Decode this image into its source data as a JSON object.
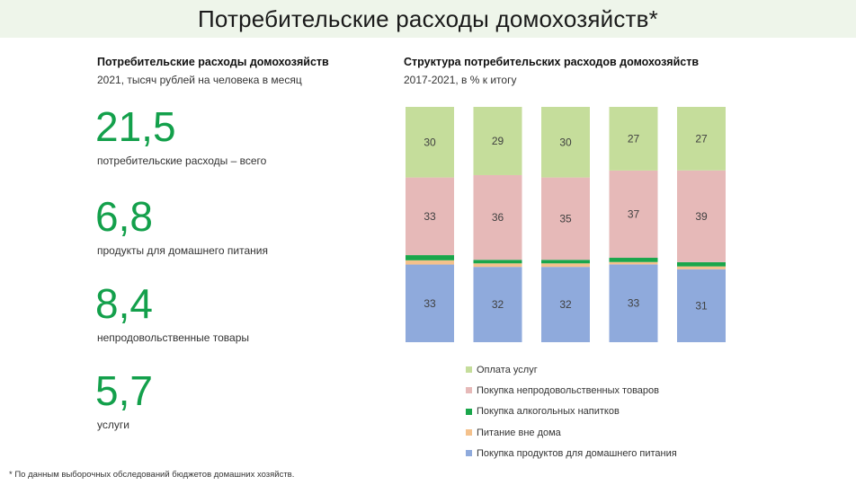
{
  "header": {
    "title": "Потребительские расходы домохозяйств*"
  },
  "left": {
    "title": "Потребительские расходы домохозяйств",
    "subtitle": "2021, тысяч рублей на человека в месяц",
    "kpis": [
      {
        "value": "21,5",
        "label": "потребительские расходы – всего"
      },
      {
        "value": "6,8",
        "label": "продукты для домашнего питания"
      },
      {
        "value": "8,4",
        "label": "непродовольственные товары"
      },
      {
        "value": "5,7",
        "label": "услуги"
      }
    ]
  },
  "right": {
    "title": "Структура потребительских расходов домохозяйств",
    "subtitle": "2017-2021, в % к итогу"
  },
  "chart_data": {
    "type": "bar",
    "stacked": true,
    "categories": [
      "",
      "",
      "",
      "",
      ""
    ],
    "ylim": [
      0,
      100
    ],
    "series": [
      {
        "name": "Покупка продуктов для домашнего питания",
        "color": "#8faadc",
        "values": [
          33,
          32,
          32,
          33,
          31
        ],
        "labels": [
          "33",
          "32",
          "32",
          "33",
          "31"
        ]
      },
      {
        "name": "Питание вне дома",
        "color": "#f4c18c",
        "values": [
          1.8,
          1.5,
          1.5,
          1.0,
          1.2
        ],
        "labels": [
          "",
          "",
          "",
          "",
          ""
        ]
      },
      {
        "name": "Покупка алкогольных напитков",
        "color": "#1aa64b",
        "values": [
          2.2,
          1.5,
          1.5,
          1.8,
          1.8
        ],
        "labels": [
          "",
          "",
          "",
          "",
          ""
        ]
      },
      {
        "name": "Покупка непродовольственных товаров",
        "color": "#e6b9b8",
        "values": [
          33,
          36,
          35,
          37,
          39
        ],
        "labels": [
          "33",
          "36",
          "35",
          "37",
          "39"
        ]
      },
      {
        "name": "Оплата услуг",
        "color": "#c5dd9b",
        "values": [
          30,
          29,
          30,
          27,
          27
        ],
        "labels": [
          "30",
          "29",
          "30",
          "27",
          "27"
        ]
      }
    ],
    "grid": false,
    "legend": "bottom"
  },
  "legend_order": [
    4,
    3,
    2,
    1,
    0
  ],
  "footnote": "* По данным выборочных обследований бюджетов домашних хозяйств."
}
